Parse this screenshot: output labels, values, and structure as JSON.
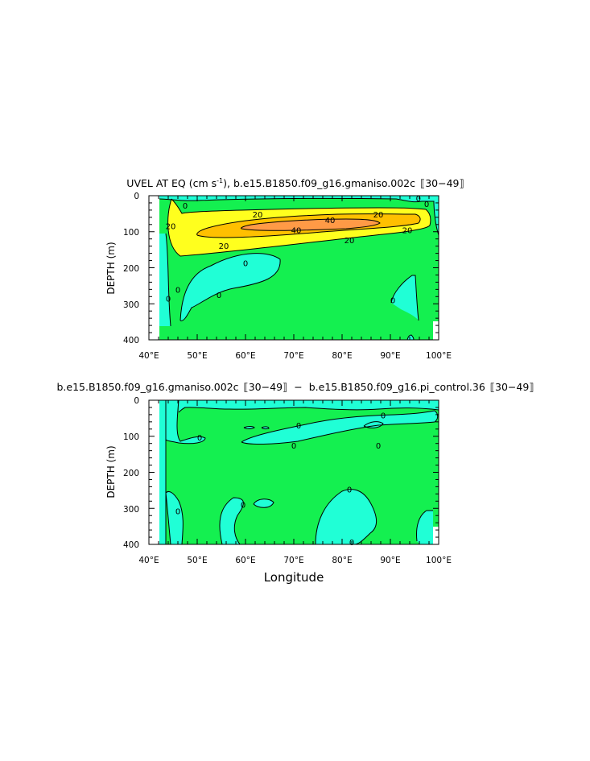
{
  "chart_data": [
    {
      "type": "contour",
      "title_main": "UVEL AT EQ (cm s",
      "title_sup": "-1",
      "title_rest": "), b.e15.B1850.f09_g16.gmaniso.002c",
      "title_years": "30−49",
      "xlabel": "",
      "ylabel": "DEPTH (m)",
      "xlim": [
        40,
        100
      ],
      "ylim": [
        0,
        400
      ],
      "y_inverted": true,
      "x_ticks": [
        "40°E",
        "50°E",
        "60°E",
        "70°E",
        "80°E",
        "90°E",
        "100°E"
      ],
      "y_ticks": [
        "0",
        "100",
        "200",
        "300",
        "400"
      ],
      "levels": [
        0,
        20,
        40
      ],
      "fill_colors": {
        "below_0": "#20ffd6",
        "0_to_20": "#14f050",
        "20_to_40": "#ffff1e",
        "above_40": "#ffc000",
        "above_60": "#ff9a46"
      },
      "contour_labels": [
        {
          "text": "0",
          "lon": 47.5,
          "depth": 28
        },
        {
          "text": "20",
          "lon": 62.5,
          "depth": 52
        },
        {
          "text": "20",
          "lon": 44.5,
          "depth": 85
        },
        {
          "text": "40",
          "lon": 77.5,
          "depth": 68
        },
        {
          "text": "40",
          "lon": 70.5,
          "depth": 96
        },
        {
          "text": "20",
          "lon": 87.5,
          "depth": 52
        },
        {
          "text": "20",
          "lon": 93.5,
          "depth": 96
        },
        {
          "text": "20",
          "lon": 55.5,
          "depth": 140
        },
        {
          "text": "20",
          "lon": 81.5,
          "depth": 124
        },
        {
          "text": "0",
          "lon": 60,
          "depth": 188
        },
        {
          "text": "0",
          "lon": 46,
          "depth": 262
        },
        {
          "text": "0",
          "lon": 44,
          "depth": 286
        },
        {
          "text": "0",
          "lon": 54.5,
          "depth": 276
        },
        {
          "text": "0",
          "lon": 90.5,
          "depth": 290
        },
        {
          "text": "0",
          "lon": 97.5,
          "depth": 24
        },
        {
          "text": "0",
          "lon": 95.8,
          "depth": 8
        }
      ]
    },
    {
      "type": "contour",
      "title_run1": "b.e15.B1850.f09_g16.gmaniso.002c",
      "title_years1": "30−49",
      "title_minus": "−",
      "title_run2": "b.e15.B1850.f09_g16.pi_control.36",
      "title_years2": "30−49",
      "xlabel": "Longitude",
      "ylabel": "DEPTH (m)",
      "xlim": [
        40,
        100
      ],
      "ylim": [
        0,
        400
      ],
      "y_inverted": true,
      "x_ticks": [
        "40°E",
        "50°E",
        "60°E",
        "70°E",
        "80°E",
        "90°E",
        "100°E"
      ],
      "y_ticks": [
        "0",
        "100",
        "200",
        "300",
        "400"
      ],
      "levels": [
        0
      ],
      "fill_colors": {
        "below_0": "#20ffd6",
        "above_0": "#14f050",
        "positive_max": "#ffff1e"
      },
      "contour_labels": [
        {
          "text": "0",
          "lon": 50.5,
          "depth": 104
        },
        {
          "text": "0",
          "lon": 71,
          "depth": 70
        },
        {
          "text": "0",
          "lon": 70,
          "depth": 126
        },
        {
          "text": "0",
          "lon": 87.5,
          "depth": 126
        },
        {
          "text": "0",
          "lon": 88.5,
          "depth": 42
        },
        {
          "text": "0",
          "lon": 59.5,
          "depth": 290
        },
        {
          "text": "0",
          "lon": 46,
          "depth": 308
        },
        {
          "text": "0",
          "lon": 81.5,
          "depth": 248
        },
        {
          "text": "0",
          "lon": 82,
          "depth": 394
        }
      ]
    }
  ]
}
